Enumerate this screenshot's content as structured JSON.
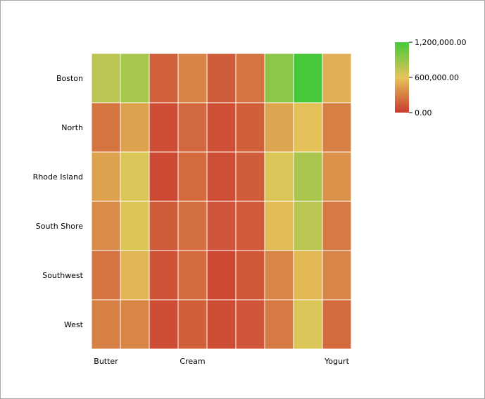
{
  "chart_data": {
    "type": "heatmap",
    "rows": [
      "Boston",
      "North",
      "Rhode Island",
      "South Shore",
      "Southwest",
      "West"
    ],
    "columns": [
      "Butter",
      "",
      "",
      "Cream",
      "",
      "",
      "",
      "",
      "Yogurt"
    ],
    "x_tick_labels": [
      "Butter",
      "Cream",
      "Yogurt"
    ],
    "values": [
      [
        760000,
        840000,
        170000,
        320000,
        150000,
        250000,
        930000,
        1200000,
        500000
      ],
      [
        250000,
        450000,
        80000,
        200000,
        100000,
        160000,
        460000,
        580000,
        300000
      ],
      [
        450000,
        640000,
        70000,
        210000,
        90000,
        150000,
        640000,
        820000,
        380000
      ],
      [
        350000,
        630000,
        150000,
        230000,
        120000,
        140000,
        560000,
        760000,
        270000
      ],
      [
        250000,
        530000,
        110000,
        210000,
        70000,
        130000,
        330000,
        550000,
        330000
      ],
      [
        300000,
        330000,
        80000,
        160000,
        80000,
        120000,
        270000,
        640000,
        210000
      ]
    ],
    "colorbar": {
      "min": 0,
      "max": 1200000,
      "ticks": [
        0,
        600000,
        1200000
      ],
      "tick_labels": [
        "0.00",
        "600,000.00",
        "1,200,000.00"
      ],
      "colors": [
        "#c93a2f",
        "#e5c55a",
        "#45c93a"
      ]
    }
  }
}
